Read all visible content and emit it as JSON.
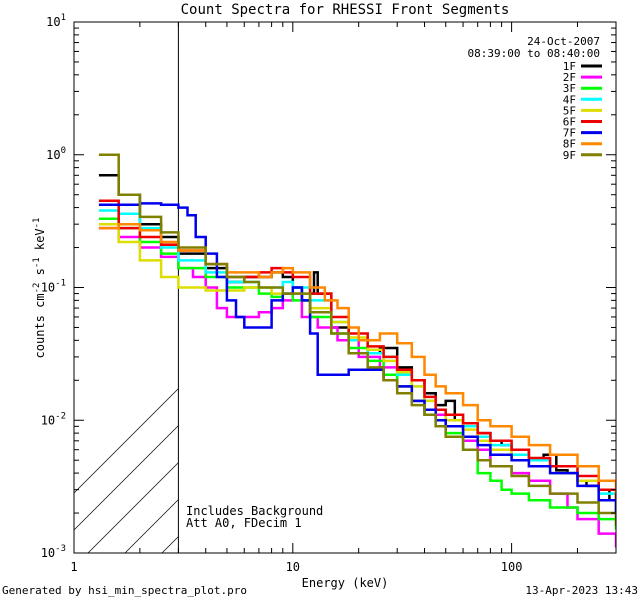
{
  "chart_data": {
    "type": "line",
    "title": "Count Spectra for RHESSI Front Segments",
    "xlabel": "Energy (keV)",
    "ylabel": {
      "base": "counts cm",
      "exp1": "-2",
      "mid": " s",
      "exp2": "-1",
      "end": " keV",
      "exp3": "-1"
    },
    "xscale": "log",
    "yscale": "log",
    "xlim": [
      1,
      300
    ],
    "ylim": [
      0.001,
      10
    ],
    "xticks": [
      {
        "v": 1,
        "label": "1"
      },
      {
        "v": 10,
        "label": "10"
      },
      {
        "v": 100,
        "label": "100"
      }
    ],
    "yticks": [
      {
        "v": 0.001,
        "base": "10",
        "exp": "-3"
      },
      {
        "v": 0.01,
        "base": "10",
        "exp": "-2"
      },
      {
        "v": 0.1,
        "base": "10",
        "exp": "-1"
      },
      {
        "v": 1,
        "base": "10",
        "exp": "0"
      },
      {
        "v": 10,
        "base": "10",
        "exp": "1"
      }
    ],
    "hatched_region_max_energy": 3,
    "date": "24-Oct-2007",
    "time_range": "08:39:00 to 08:40:00",
    "legend_position": "top-right",
    "annotations": [
      "Includes Background",
      "Att A0, FDecim 1"
    ],
    "series": [
      {
        "name": "1F",
        "color": "#000000",
        "points": [
          [
            1.3,
            0.7
          ],
          [
            1.6,
            0.5
          ],
          [
            2,
            0.3
          ],
          [
            2.5,
            0.24
          ],
          [
            3,
            0.18
          ],
          [
            4,
            0.14
          ],
          [
            5,
            0.11
          ],
          [
            6,
            0.12
          ],
          [
            7,
            0.12
          ],
          [
            8,
            0.13
          ],
          [
            9,
            0.12
          ],
          [
            10,
            0.1
          ],
          [
            11,
            0.08
          ],
          [
            12,
            0.09
          ],
          [
            12.5,
            0.13
          ],
          [
            13,
            0.09
          ],
          [
            15,
            0.05
          ],
          [
            18,
            0.04
          ],
          [
            22,
            0.032
          ],
          [
            25,
            0.035
          ],
          [
            30,
            0.025
          ],
          [
            35,
            0.02
          ],
          [
            40,
            0.016
          ],
          [
            45,
            0.013
          ],
          [
            50,
            0.014
          ],
          [
            55,
            0.01
          ],
          [
            60,
            0.009
          ],
          [
            70,
            0.008
          ],
          [
            80,
            0.007
          ],
          [
            90,
            0.0065
          ],
          [
            100,
            0.006
          ],
          [
            120,
            0.005
          ],
          [
            140,
            0.0055
          ],
          [
            160,
            0.0042
          ],
          [
            180,
            0.004
          ],
          [
            200,
            0.0035
          ],
          [
            220,
            0.0032
          ],
          [
            250,
            0.003
          ],
          [
            280,
            0.0025
          ],
          [
            300,
            0.002
          ]
        ]
      },
      {
        "name": "2F",
        "color": "#ff00ff",
        "points": [
          [
            1.3,
            0.28
          ],
          [
            1.6,
            0.24
          ],
          [
            2,
            0.2
          ],
          [
            2.5,
            0.17
          ],
          [
            3,
            0.14
          ],
          [
            3.5,
            0.12
          ],
          [
            4,
            0.1
          ],
          [
            4.5,
            0.07
          ],
          [
            5,
            0.06
          ],
          [
            6,
            0.06
          ],
          [
            7,
            0.065
          ],
          [
            8,
            0.07
          ],
          [
            9,
            0.08
          ],
          [
            10,
            0.09
          ],
          [
            11,
            0.06
          ],
          [
            13,
            0.05
          ],
          [
            16,
            0.04
          ],
          [
            20,
            0.03
          ],
          [
            25,
            0.025
          ],
          [
            30,
            0.018
          ],
          [
            35,
            0.014
          ],
          [
            40,
            0.011
          ],
          [
            50,
            0.009
          ],
          [
            60,
            0.007
          ],
          [
            70,
            0.006
          ],
          [
            80,
            0.0045
          ],
          [
            100,
            0.004
          ],
          [
            120,
            0.0035
          ],
          [
            150,
            0.0028
          ],
          [
            180,
            0.0022
          ],
          [
            200,
            0.0018
          ],
          [
            250,
            0.0014
          ],
          [
            300,
            0.0011
          ]
        ]
      },
      {
        "name": "3F",
        "color": "#00ff00",
        "points": [
          [
            1.3,
            0.33
          ],
          [
            1.6,
            0.28
          ],
          [
            2,
            0.22
          ],
          [
            2.5,
            0.18
          ],
          [
            3,
            0.14
          ],
          [
            4,
            0.12
          ],
          [
            5,
            0.1
          ],
          [
            6,
            0.1
          ],
          [
            7,
            0.09
          ],
          [
            8,
            0.085
          ],
          [
            9,
            0.09
          ],
          [
            10,
            0.08
          ],
          [
            12,
            0.06
          ],
          [
            15,
            0.045
          ],
          [
            18,
            0.035
          ],
          [
            22,
            0.028
          ],
          [
            26,
            0.022
          ],
          [
            30,
            0.018
          ],
          [
            35,
            0.014
          ],
          [
            40,
            0.011
          ],
          [
            45,
            0.009
          ],
          [
            50,
            0.008
          ],
          [
            60,
            0.006
          ],
          [
            70,
            0.004
          ],
          [
            80,
            0.0035
          ],
          [
            90,
            0.003
          ],
          [
            100,
            0.0028
          ],
          [
            120,
            0.0025
          ],
          [
            150,
            0.0022
          ],
          [
            200,
            0.002
          ],
          [
            250,
            0.0018
          ],
          [
            300,
            0.0015
          ]
        ]
      },
      {
        "name": "4F",
        "color": "#00ffff",
        "points": [
          [
            1.3,
            0.38
          ],
          [
            1.6,
            0.36
          ],
          [
            2,
            0.28
          ],
          [
            2.5,
            0.2
          ],
          [
            3,
            0.16
          ],
          [
            4,
            0.13
          ],
          [
            5,
            0.11
          ],
          [
            6,
            0.11
          ],
          [
            7,
            0.1
          ],
          [
            8,
            0.1
          ],
          [
            9,
            0.11
          ],
          [
            10,
            0.1
          ],
          [
            12,
            0.08
          ],
          [
            15,
            0.055
          ],
          [
            18,
            0.04
          ],
          [
            22,
            0.032
          ],
          [
            26,
            0.03
          ],
          [
            30,
            0.022
          ],
          [
            35,
            0.018
          ],
          [
            40,
            0.014
          ],
          [
            45,
            0.012
          ],
          [
            50,
            0.011
          ],
          [
            60,
            0.009
          ],
          [
            70,
            0.0075
          ],
          [
            80,
            0.0065
          ],
          [
            100,
            0.0055
          ],
          [
            120,
            0.005
          ],
          [
            150,
            0.0045
          ],
          [
            200,
            0.0035
          ],
          [
            250,
            0.0028
          ],
          [
            300,
            0.0022
          ]
        ]
      },
      {
        "name": "5F",
        "color": "#dddd00",
        "points": [
          [
            1.3,
            0.3
          ],
          [
            1.6,
            0.22
          ],
          [
            2,
            0.16
          ],
          [
            2.5,
            0.12
          ],
          [
            3,
            0.1
          ],
          [
            4,
            0.095
          ],
          [
            5,
            0.095
          ],
          [
            6,
            0.1
          ],
          [
            7,
            0.1
          ],
          [
            8,
            0.09
          ],
          [
            9,
            0.09
          ],
          [
            10,
            0.09
          ],
          [
            12,
            0.07
          ],
          [
            15,
            0.055
          ],
          [
            18,
            0.042
          ],
          [
            22,
            0.034
          ],
          [
            26,
            0.028
          ],
          [
            30,
            0.023
          ],
          [
            35,
            0.018
          ],
          [
            40,
            0.014
          ],
          [
            45,
            0.012
          ],
          [
            50,
            0.01
          ],
          [
            60,
            0.0085
          ],
          [
            70,
            0.007
          ],
          [
            80,
            0.006
          ],
          [
            100,
            0.005
          ],
          [
            120,
            0.0045
          ],
          [
            150,
            0.004
          ],
          [
            200,
            0.0035
          ],
          [
            250,
            0.0025
          ],
          [
            300,
            0.0018
          ]
        ]
      },
      {
        "name": "6F",
        "color": "#ee0000",
        "points": [
          [
            1.3,
            0.45
          ],
          [
            1.6,
            0.28
          ],
          [
            2,
            0.24
          ],
          [
            2.5,
            0.21
          ],
          [
            3,
            0.19
          ],
          [
            4,
            0.15
          ],
          [
            5,
            0.12
          ],
          [
            6,
            0.12
          ],
          [
            7,
            0.13
          ],
          [
            8,
            0.14
          ],
          [
            9,
            0.13
          ],
          [
            10,
            0.12
          ],
          [
            12,
            0.09
          ],
          [
            15,
            0.06
          ],
          [
            18,
            0.045
          ],
          [
            22,
            0.036
          ],
          [
            26,
            0.03
          ],
          [
            30,
            0.024
          ],
          [
            35,
            0.02
          ],
          [
            40,
            0.015
          ],
          [
            45,
            0.012
          ],
          [
            50,
            0.011
          ],
          [
            60,
            0.0095
          ],
          [
            70,
            0.008
          ],
          [
            80,
            0.007
          ],
          [
            100,
            0.006
          ],
          [
            120,
            0.0052
          ],
          [
            150,
            0.0045
          ],
          [
            200,
            0.0038
          ],
          [
            250,
            0.003
          ],
          [
            300,
            0.0024
          ]
        ]
      },
      {
        "name": "7F",
        "color": "#0000ee",
        "points": [
          [
            1.3,
            0.42
          ],
          [
            1.6,
            0.42
          ],
          [
            2,
            0.43
          ],
          [
            2.5,
            0.42
          ],
          [
            3,
            0.4
          ],
          [
            3.3,
            0.35
          ],
          [
            3.6,
            0.24
          ],
          [
            4,
            0.18
          ],
          [
            4.5,
            0.12
          ],
          [
            5,
            0.08
          ],
          [
            5.5,
            0.06
          ],
          [
            6,
            0.05
          ],
          [
            7,
            0.05
          ],
          [
            8,
            0.08
          ],
          [
            9,
            0.09
          ],
          [
            10,
            0.1
          ],
          [
            11,
            0.08
          ],
          [
            12,
            0.045
          ],
          [
            13,
            0.022
          ],
          [
            15,
            0.022
          ],
          [
            18,
            0.024
          ],
          [
            22,
            0.024
          ],
          [
            26,
            0.02
          ],
          [
            30,
            0.018
          ],
          [
            35,
            0.014
          ],
          [
            40,
            0.012
          ],
          [
            45,
            0.01
          ],
          [
            50,
            0.009
          ],
          [
            60,
            0.0075
          ],
          [
            70,
            0.0065
          ],
          [
            80,
            0.0055
          ],
          [
            100,
            0.005
          ],
          [
            120,
            0.0045
          ],
          [
            150,
            0.004
          ],
          [
            200,
            0.0032
          ],
          [
            250,
            0.0025
          ],
          [
            300,
            0.002
          ]
        ]
      },
      {
        "name": "8F",
        "color": "#ff8800",
        "points": [
          [
            1.3,
            0.28
          ],
          [
            1.6,
            0.3
          ],
          [
            2,
            0.27
          ],
          [
            2.5,
            0.22
          ],
          [
            3,
            0.19
          ],
          [
            4,
            0.15
          ],
          [
            5,
            0.13
          ],
          [
            6,
            0.13
          ],
          [
            7,
            0.12
          ],
          [
            8,
            0.13
          ],
          [
            9,
            0.14
          ],
          [
            10,
            0.13
          ],
          [
            12,
            0.1
          ],
          [
            14,
            0.08
          ],
          [
            16,
            0.07
          ],
          [
            18,
            0.05
          ],
          [
            20,
            0.04
          ],
          [
            25,
            0.045
          ],
          [
            30,
            0.038
          ],
          [
            35,
            0.03
          ],
          [
            40,
            0.022
          ],
          [
            45,
            0.018
          ],
          [
            50,
            0.016
          ],
          [
            60,
            0.013
          ],
          [
            70,
            0.01
          ],
          [
            80,
            0.009
          ],
          [
            100,
            0.0075
          ],
          [
            120,
            0.0065
          ],
          [
            150,
            0.0055
          ],
          [
            200,
            0.0045
          ],
          [
            250,
            0.0035
          ],
          [
            300,
            0.0028
          ]
        ]
      },
      {
        "name": "9F",
        "color": "#808000",
        "points": [
          [
            1.3,
            1.0
          ],
          [
            1.6,
            0.5
          ],
          [
            2,
            0.34
          ],
          [
            2.5,
            0.26
          ],
          [
            3,
            0.2
          ],
          [
            4,
            0.15
          ],
          [
            5,
            0.12
          ],
          [
            6,
            0.11
          ],
          [
            7,
            0.1
          ],
          [
            8,
            0.1
          ],
          [
            9,
            0.09
          ],
          [
            10,
            0.09
          ],
          [
            12,
            0.065
          ],
          [
            15,
            0.045
          ],
          [
            18,
            0.032
          ],
          [
            22,
            0.025
          ],
          [
            26,
            0.02
          ],
          [
            30,
            0.016
          ],
          [
            35,
            0.013
          ],
          [
            40,
            0.011
          ],
          [
            45,
            0.009
          ],
          [
            50,
            0.0075
          ],
          [
            60,
            0.006
          ],
          [
            70,
            0.005
          ],
          [
            80,
            0.0045
          ],
          [
            100,
            0.0038
          ],
          [
            120,
            0.0032
          ],
          [
            150,
            0.0028
          ],
          [
            200,
            0.0024
          ],
          [
            250,
            0.002
          ],
          [
            300,
            0.0016
          ]
        ]
      }
    ]
  },
  "footer": {
    "generated_by": "Generated by hsi_min_spectra_plot.pro",
    "timestamp": "13-Apr-2023 13:43"
  }
}
